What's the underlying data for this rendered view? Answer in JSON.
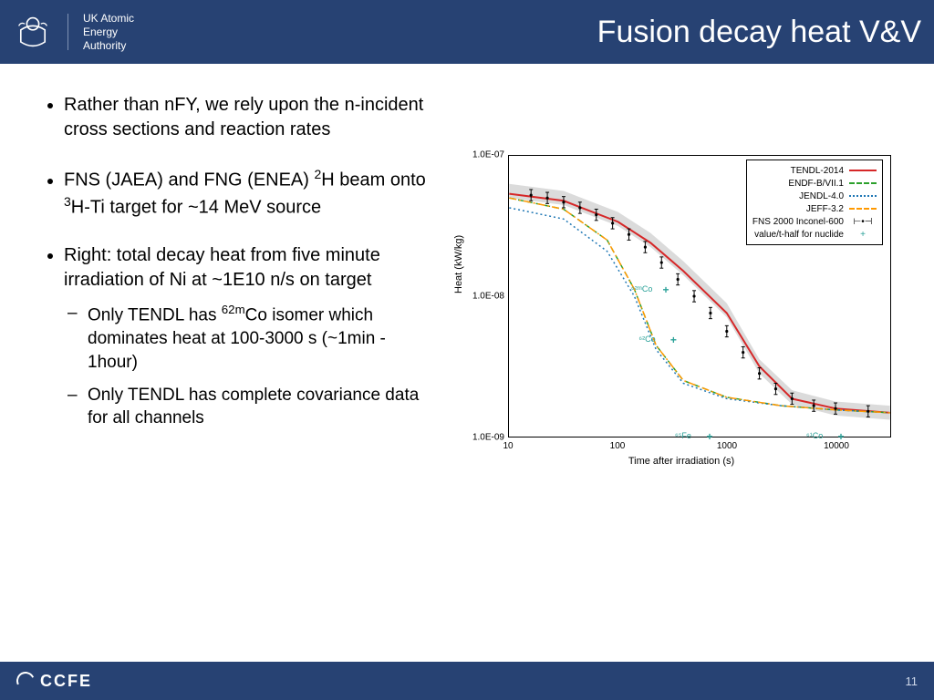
{
  "header": {
    "org_lines": [
      "UK Atomic",
      "Energy",
      "Authority"
    ],
    "title": "Fusion decay heat V&V"
  },
  "bullets": [
    {
      "html": "Rather than nFY, we rely upon the n-incident cross sections and reaction rates"
    },
    {
      "html": "FNS (JAEA) and FNG (ENEA) <sup>2</sup>H beam onto <sup>3</sup>H-Ti target for ~14 MeV source"
    },
    {
      "html": "Right: total decay heat from five minute irradiation of Ni at ~1E10 n/s on target",
      "sub": [
        "Only TENDL has <sup>62m</sup>Co isomer which dominates heat at 100-3000 s (~1min - 1hour)",
        "Only TENDL has complete covariance data for all channels"
      ]
    }
  ],
  "chart": {
    "type": "line-loglog",
    "xlabel": "Time after irradiation (s)",
    "ylabel": "Heat (kW/kg)",
    "x_log_range": [
      1,
      4.5
    ],
    "y_log_range": [
      -9,
      -7
    ],
    "x_ticks": [
      {
        "log": 1,
        "label": "10"
      },
      {
        "log": 2,
        "label": "100"
      },
      {
        "log": 3,
        "label": "1000"
      },
      {
        "log": 4,
        "label": "10000"
      }
    ],
    "y_ticks": [
      {
        "log": -7,
        "label": "1.0E-07"
      },
      {
        "log": -8,
        "label": "1.0E-08"
      },
      {
        "log": -9,
        "label": "1.0E-09"
      }
    ],
    "legend": [
      {
        "label": "TENDL-2014",
        "color": "#d62728",
        "dash": "solid"
      },
      {
        "label": "ENDF-B/VII.1",
        "color": "#2ca02c",
        "dash": "dashed"
      },
      {
        "label": "JENDL-4.0",
        "color": "#1f77b4",
        "dash": "dotted"
      },
      {
        "label": "JEFF-3.2",
        "color": "#ff9900",
        "dash": "dashdot"
      },
      {
        "label": "FNS 2000 Inconel-600",
        "color": "#000000",
        "marker": "errorbar"
      },
      {
        "label": "value/t-half for nuclide",
        "color": "#2aa198",
        "marker": "plus"
      }
    ],
    "band": {
      "color": "#cccccc",
      "opacity": 0.7,
      "points": [
        [
          1,
          -7.25
        ],
        [
          1.5,
          -7.3
        ],
        [
          2,
          -7.45
        ],
        [
          2.3,
          -7.6
        ],
        [
          2.6,
          -7.8
        ],
        [
          3,
          -8.1
        ],
        [
          3.3,
          -8.5
        ],
        [
          3.6,
          -8.72
        ],
        [
          4,
          -8.8
        ],
        [
          4.5,
          -8.83
        ]
      ]
    },
    "series": {
      "tendl": {
        "color": "#d62728",
        "dash": "",
        "width": 2,
        "points": [
          [
            1,
            -7.27
          ],
          [
            1.5,
            -7.32
          ],
          [
            2,
            -7.47
          ],
          [
            2.3,
            -7.62
          ],
          [
            2.6,
            -7.82
          ],
          [
            3,
            -8.12
          ],
          [
            3.3,
            -8.5
          ],
          [
            3.6,
            -8.73
          ],
          [
            4,
            -8.8
          ],
          [
            4.5,
            -8.83
          ]
        ]
      },
      "endf": {
        "color": "#2ca02c",
        "dash": "6,4",
        "width": 1.5,
        "points": [
          [
            1,
            -7.3
          ],
          [
            1.5,
            -7.38
          ],
          [
            1.9,
            -7.6
          ],
          [
            2.15,
            -7.95
          ],
          [
            2.35,
            -8.35
          ],
          [
            2.6,
            -8.6
          ],
          [
            3,
            -8.72
          ],
          [
            3.5,
            -8.78
          ],
          [
            4,
            -8.81
          ],
          [
            4.5,
            -8.83
          ]
        ]
      },
      "jendl": {
        "color": "#1f77b4",
        "dash": "2,3",
        "width": 1.5,
        "points": [
          [
            1,
            -7.37
          ],
          [
            1.5,
            -7.45
          ],
          [
            1.9,
            -7.68
          ],
          [
            2.15,
            -8.0
          ],
          [
            2.35,
            -8.38
          ],
          [
            2.6,
            -8.62
          ],
          [
            3,
            -8.73
          ],
          [
            3.5,
            -8.78
          ],
          [
            4,
            -8.81
          ],
          [
            4.5,
            -8.83
          ]
        ]
      },
      "jeff": {
        "color": "#ff9900",
        "dash": "8,3,2,3",
        "width": 1.5,
        "points": [
          [
            1,
            -7.3
          ],
          [
            1.5,
            -7.38
          ],
          [
            1.9,
            -7.6
          ],
          [
            2.15,
            -7.95
          ],
          [
            2.35,
            -8.35
          ],
          [
            2.6,
            -8.6
          ],
          [
            3,
            -8.72
          ],
          [
            3.5,
            -8.78
          ],
          [
            4,
            -8.81
          ],
          [
            4.5,
            -8.83
          ]
        ]
      }
    },
    "data_points": {
      "color": "#000000",
      "points": [
        [
          1.2,
          -7.28
        ],
        [
          1.35,
          -7.3
        ],
        [
          1.5,
          -7.33
        ],
        [
          1.65,
          -7.37
        ],
        [
          1.8,
          -7.42
        ],
        [
          1.95,
          -7.48
        ],
        [
          2.1,
          -7.56
        ],
        [
          2.25,
          -7.65
        ],
        [
          2.4,
          -7.76
        ],
        [
          2.55,
          -7.88
        ],
        [
          2.7,
          -8.0
        ],
        [
          2.85,
          -8.12
        ],
        [
          3.0,
          -8.25
        ],
        [
          3.15,
          -8.4
        ],
        [
          3.3,
          -8.55
        ],
        [
          3.45,
          -8.66
        ],
        [
          3.6,
          -8.73
        ],
        [
          3.8,
          -8.78
        ],
        [
          4.0,
          -8.8
        ],
        [
          4.3,
          -8.82
        ]
      ],
      "err": 0.04
    },
    "nuclide_markers": [
      {
        "label": "⁶²ᵐCo",
        "x_log": 2.35,
        "y_log": -7.95
      },
      {
        "label": "⁶²Co",
        "x_log": 2.42,
        "y_log": -8.3
      },
      {
        "label": "⁶⁵Fe",
        "x_log": 2.75,
        "y_log": -9.02
      },
      {
        "label": "⁶¹Co",
        "x_log": 3.95,
        "y_log": -9.3
      }
    ],
    "background_color": "#ffffff",
    "axis_color": "#000000",
    "label_fontsize": 11,
    "tick_fontsize": 10
  },
  "footer": {
    "logo": "CCFE",
    "page": "11"
  }
}
